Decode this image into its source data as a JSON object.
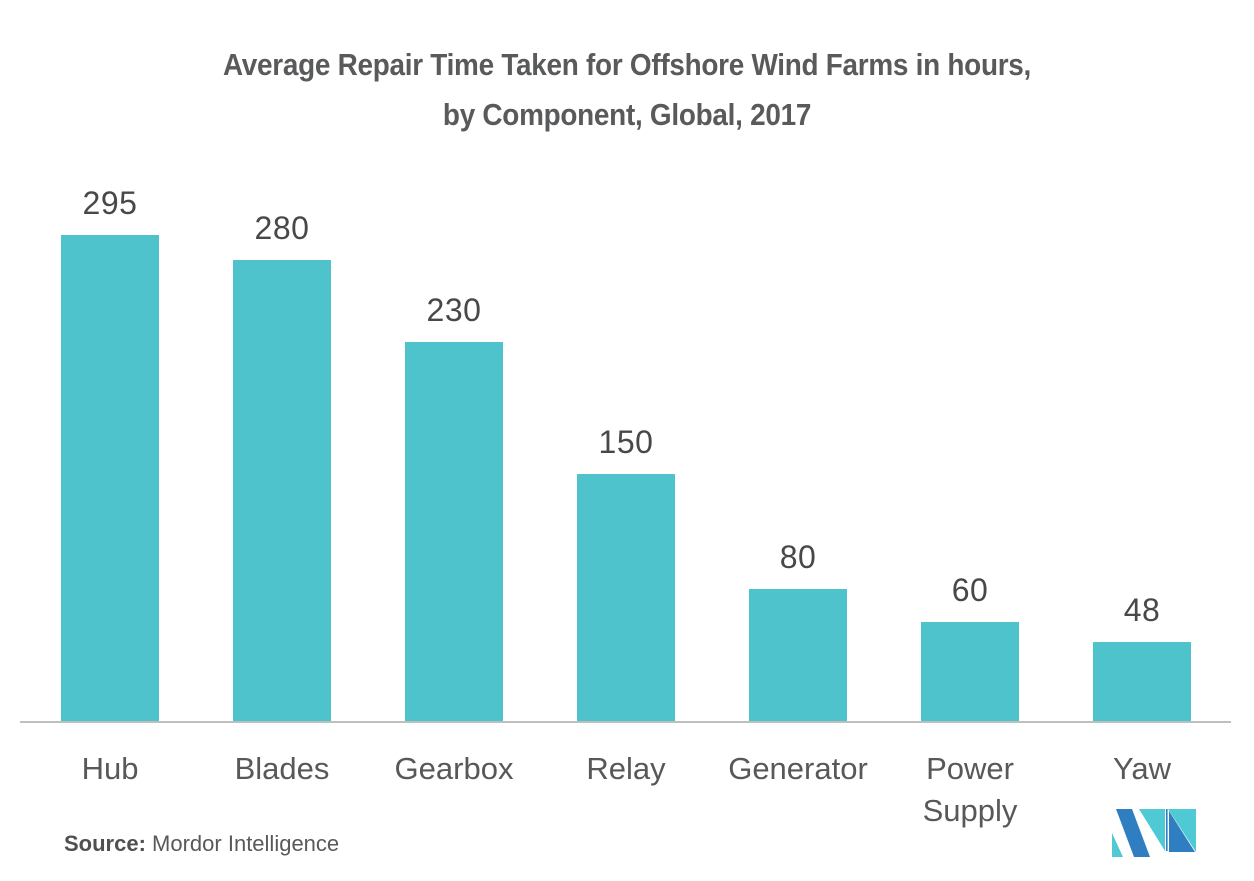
{
  "chart_data": {
    "type": "bar",
    "title": "Average Repair Time Taken for Offshore Wind Farms in hours, by Component, Global, 2017",
    "title_lines": [
      "Average Repair Time Taken for Offshore Wind Farms in hours,",
      "by Component, Global, 2017"
    ],
    "categories": [
      "Hub",
      "Blades",
      "Gearbox",
      "Relay",
      "Generator",
      "Power Supply",
      "Yaw"
    ],
    "values": [
      295,
      280,
      230,
      150,
      80,
      60,
      48
    ],
    "xlabel": "",
    "ylabel": "",
    "ylim": [
      0,
      295
    ],
    "grid": false,
    "legend": false,
    "data_labels_shown": true,
    "bar_color": "#4ec3cb"
  },
  "source": {
    "label": "Source:",
    "text": "Mordor Intelligence"
  },
  "logo": {
    "name": "mordor-intelligence-logo",
    "blue": "#2f7ec2",
    "teal": "#4fc9d3"
  },
  "colors": {
    "background": "#ffffff",
    "title_text": "#595a5c",
    "value_label_text": "#48484a",
    "category_label_text": "#57585a",
    "axis_line": "#bfbfbf",
    "source_text": "#58595b"
  }
}
